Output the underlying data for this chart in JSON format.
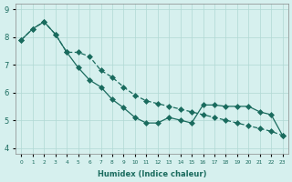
{
  "series1": [
    7.9,
    8.3,
    8.55,
    8.1,
    7.45,
    6.9,
    6.45,
    6.2,
    5.75,
    5.45,
    5.1,
    4.9,
    4.9,
    5.1,
    5.0,
    4.9,
    5.55,
    5.55,
    5.5,
    5.5,
    5.5,
    5.3,
    5.2,
    4.45
  ],
  "series2": [
    7.9,
    8.3,
    8.55,
    8.1,
    7.45,
    7.45,
    7.3,
    6.8,
    6.55,
    6.2,
    5.9,
    5.7,
    5.6,
    5.5,
    5.4,
    5.3,
    5.2,
    5.1,
    5.0,
    4.9,
    4.8,
    4.7,
    4.6,
    4.45
  ],
  "x": [
    0,
    1,
    2,
    3,
    4,
    5,
    6,
    7,
    8,
    9,
    10,
    11,
    12,
    13,
    14,
    15,
    16,
    17,
    18,
    19,
    20,
    21,
    22,
    23
  ],
  "xlabel": "Humidex (Indice chaleur)",
  "ylim": [
    3.8,
    9.2
  ],
  "xlim": [
    -0.5,
    23.5
  ],
  "line_color": "#1a6b5e",
  "bg_color": "#d6f0ee",
  "grid_color": "#b0d8d4"
}
